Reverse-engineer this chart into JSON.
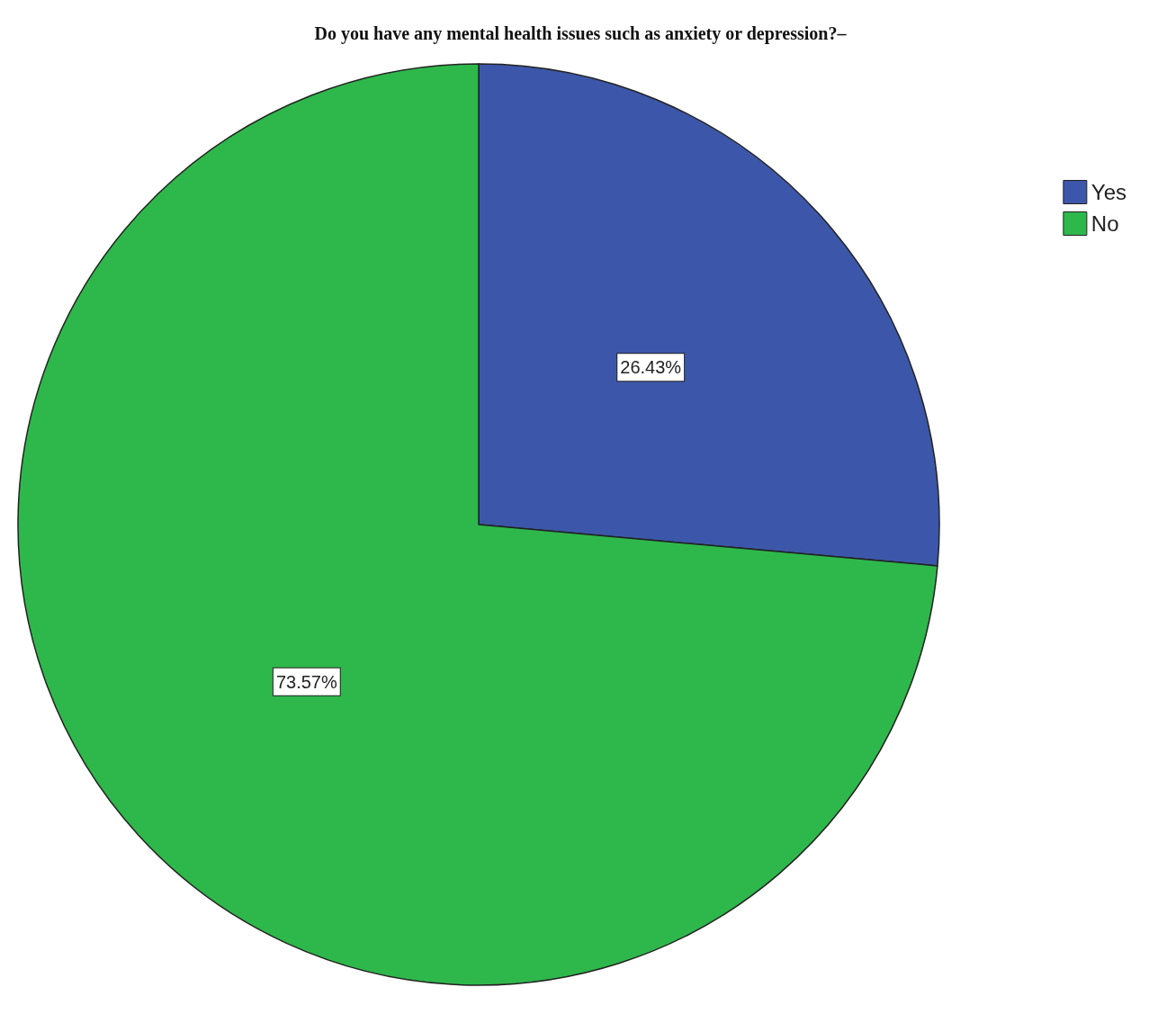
{
  "chart_data": {
    "type": "pie",
    "title": "Do you have any mental health issues such as anxiety or depression?–",
    "categories": [
      "Yes",
      "No"
    ],
    "values": [
      26.43,
      73.57
    ],
    "colors": [
      "#3c57a9",
      "#2eb84b"
    ],
    "value_labels": [
      "26.43%",
      "73.57%"
    ],
    "legend": "top right"
  }
}
